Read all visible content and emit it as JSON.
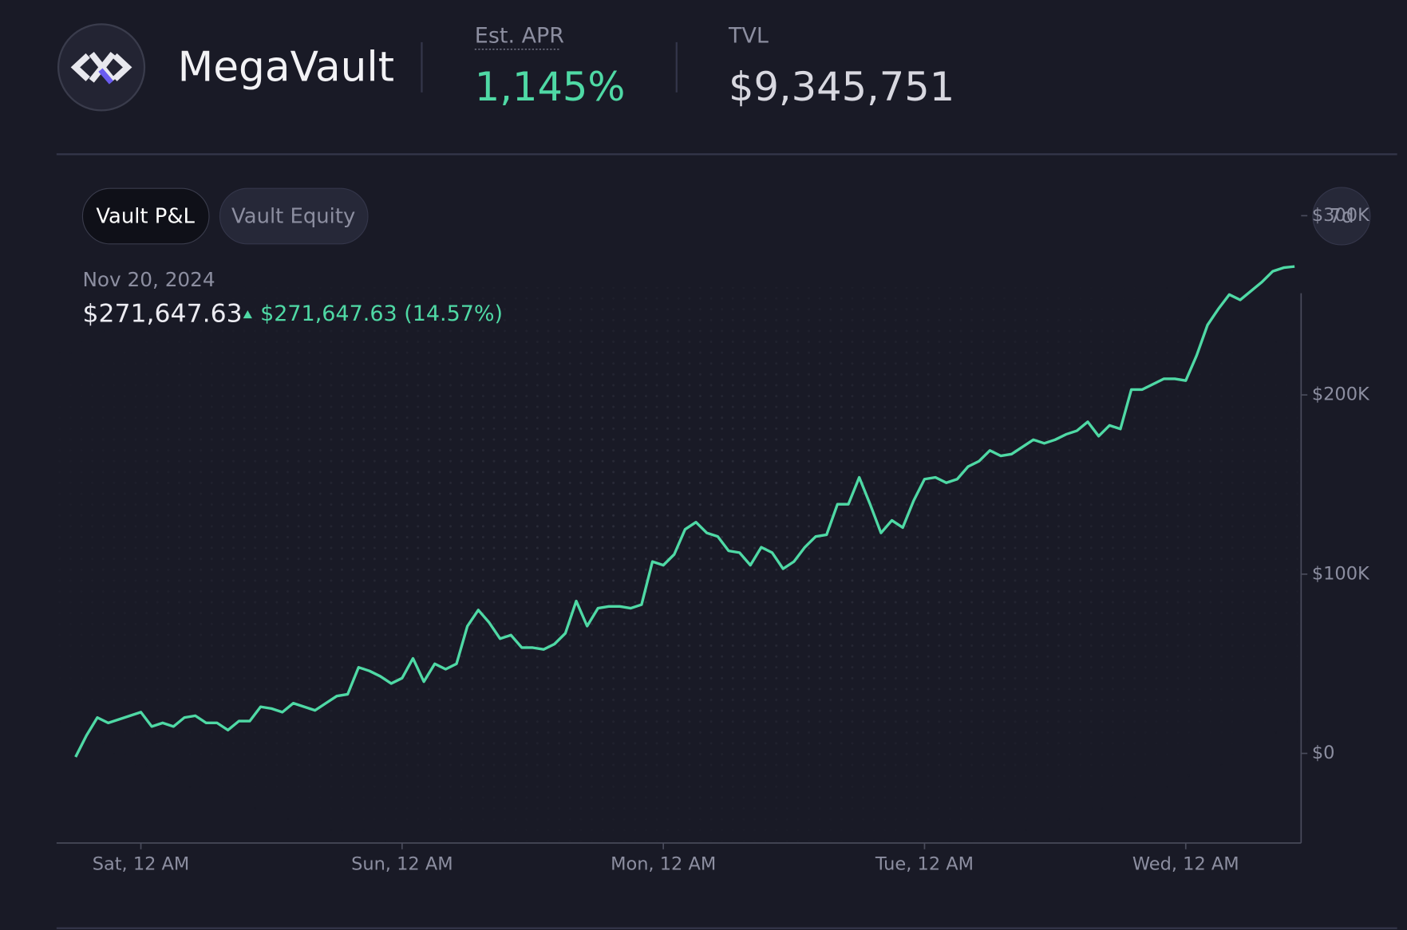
{
  "header": {
    "name": "MegaVault",
    "apr_label": "Est. APR",
    "apr_value": "1,145%",
    "tvl_label": "TVL",
    "tvl_value": "$9,345,751"
  },
  "tabs": [
    "Vault P&L",
    "Vault Equity"
  ],
  "range": "7d",
  "summary": {
    "date": "Nov 20, 2024",
    "value": "$271,647.63",
    "change": "$271,647.63 (14.57%)"
  },
  "chart_data": {
    "type": "line",
    "color": "#4fd9a5",
    "x": [
      -6,
      -5,
      -4,
      -3,
      -2,
      -1,
      0,
      1,
      2,
      3,
      4,
      5,
      6,
      7,
      8,
      9,
      10,
      11,
      12,
      13,
      14,
      15,
      16,
      17,
      18,
      19,
      20,
      21,
      22,
      23,
      24,
      25,
      26,
      27,
      28,
      29,
      30,
      31,
      32,
      33,
      34,
      35,
      36,
      37,
      38,
      39,
      40,
      41,
      42,
      43,
      44,
      45,
      46,
      47,
      48,
      49,
      50,
      51,
      52,
      53,
      54,
      55,
      56,
      57,
      58,
      59,
      60,
      61,
      62,
      63,
      64,
      65,
      66,
      67,
      68,
      69,
      70,
      71,
      72,
      73,
      74,
      75,
      76,
      77,
      78,
      79,
      80,
      81,
      82,
      83,
      84,
      85,
      86,
      87,
      88,
      89,
      90,
      91,
      92,
      93,
      94,
      95,
      96,
      97,
      98,
      99,
      100,
      101,
      102,
      103,
      104,
      105,
      106
    ],
    "values": [
      -2000,
      10000,
      20000,
      17000,
      19000,
      21000,
      23000,
      15000,
      17000,
      15000,
      20000,
      21000,
      17000,
      17000,
      13000,
      18000,
      18000,
      26000,
      25000,
      23000,
      28000,
      26000,
      24000,
      28000,
      32000,
      33000,
      48000,
      46000,
      43000,
      39000,
      42000,
      53000,
      40000,
      50000,
      47000,
      50000,
      71000,
      80000,
      73000,
      64000,
      66000,
      59000,
      59000,
      58000,
      61000,
      67000,
      85000,
      71000,
      81000,
      82000,
      82000,
      81000,
      83000,
      107000,
      105000,
      111000,
      125000,
      129000,
      123000,
      121000,
      113000,
      112000,
      105000,
      115000,
      112000,
      103000,
      107000,
      115000,
      121000,
      122000,
      139000,
      139000,
      154000,
      139000,
      123000,
      130000,
      126000,
      141000,
      153000,
      154000,
      151000,
      153000,
      160000,
      163000,
      169000,
      166000,
      167000,
      171000,
      175000,
      173000,
      175000,
      178000,
      180000,
      185000,
      177000,
      183000,
      181000,
      203000,
      203000,
      206000,
      209000,
      209000,
      208000,
      222000,
      239000,
      248000,
      256000,
      253000,
      258000,
      263000,
      269000,
      271000,
      271647.63
    ],
    "xlim": [
      -7.75,
      106.6
    ],
    "xticks": [
      {
        "value": 0,
        "label": "Sat, 12 AM"
      },
      {
        "value": 24,
        "label": "Sun, 12 AM"
      },
      {
        "value": 48,
        "label": "Mon, 12 AM"
      },
      {
        "value": 72,
        "label": "Tue, 12 AM"
      },
      {
        "value": 96,
        "label": "Wed, 12 AM"
      }
    ],
    "ylim": [
      -50000,
      300000
    ],
    "yticks": [
      {
        "value": 0,
        "label": "$0"
      },
      {
        "value": 100000,
        "label": "$100K"
      },
      {
        "value": 200000,
        "label": "$200K"
      },
      {
        "value": 300000,
        "label": "$300K"
      }
    ]
  }
}
